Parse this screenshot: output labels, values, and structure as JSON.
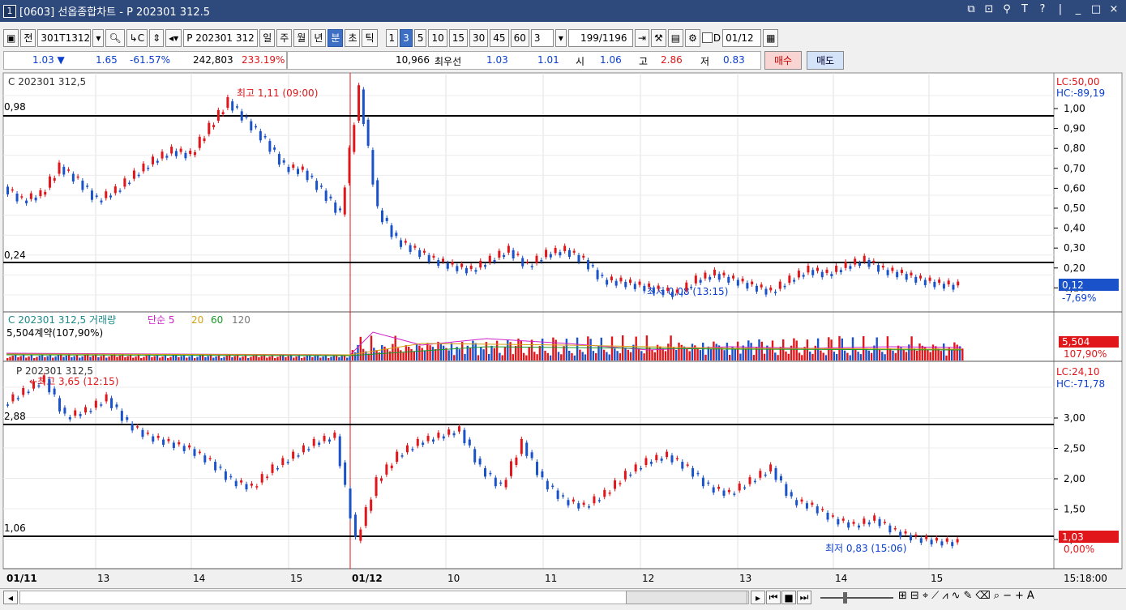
{
  "window": {
    "number": "1",
    "title": "[0603] 선옵종합차트 - P 202301 312.5",
    "controls": [
      "restore-icon",
      "detach-icon",
      "pin-icon",
      "T",
      "?",
      "|",
      "_",
      "□",
      "×"
    ]
  },
  "toolbar": {
    "all_label": "전",
    "code_value": "301T1312",
    "search_icon": "search-icon",
    "name_value": "P 202301 312",
    "periods": [
      "일",
      "주",
      "월",
      "년",
      "분",
      "초",
      "틱"
    ],
    "period_selected": "분",
    "intervals": [
      "1",
      "3",
      "5",
      "10",
      "15",
      "30",
      "45",
      "60"
    ],
    "interval_selected": "3",
    "count_select": "3",
    "count_value": "199",
    "count_total": "/1196",
    "checkbox_label": "D",
    "date_value": "01/12"
  },
  "quote": {
    "price": "1.03 ▼",
    "change": "1.65",
    "change_pct": "-61.57%",
    "volume": "242,803",
    "volume_pct": "233.19%",
    "bid_qty": "10,966",
    "bid_label": "최우선",
    "bid1": "1.03",
    "bid2": "1.01",
    "open_label": "시",
    "open": "1.06",
    "high_label": "고",
    "high": "2.86",
    "low_label": "저",
    "low": "0.83",
    "buy_label": "매수",
    "sell_label": "매도"
  },
  "panel1": {
    "title": "C 202301 312,5",
    "high_note": "최고 1,11 (09:00)",
    "low_note": "최저 0,08 (13:15)",
    "line_hi": "0,98",
    "line_lo": "0,24",
    "lc": "LC:50,00",
    "hc": "HC:-89,19",
    "yticks": [
      "1,00",
      "0,90",
      "0,80",
      "0,70",
      "0,60",
      "0,50",
      "0,40",
      "0,30",
      "0,20",
      "0,10"
    ],
    "cur": "0,12",
    "cur_pct": "-7,69%"
  },
  "panel2": {
    "title": "C 202301 312,5 거래량",
    "ma_label": "단순 5",
    "ma2": "20",
    "ma3": "60",
    "ma4": "120",
    "info": "5,504계약(107,90%)",
    "cur": "5,504",
    "cur_pct": "107,90%"
  },
  "panel3": {
    "title": "P 202301 312,5",
    "high_note": "←최고 3,65 (12:15)",
    "low_note": "최저 0,83 (15:06)",
    "line_hi": "2,88",
    "line_lo": "1,06",
    "lc": "LC:24,10",
    "hc": "HC:-71,78",
    "yticks": [
      "3,00",
      "2,50",
      "2,00",
      "1,50",
      "1,00"
    ],
    "cur": "1,03",
    "cur_pct": "0,00%"
  },
  "xaxis": {
    "labels": [
      "01/11",
      "13",
      "14",
      "15",
      "01/12",
      "10",
      "11",
      "12",
      "13",
      "14",
      "15"
    ],
    "time": "15:18:00"
  },
  "chart_data": [
    {
      "type": "candlestick",
      "title": "C 202301 312,5",
      "ylim": [
        0.05,
        1.12
      ],
      "series": [
        {
          "name": "C 202301 312,5",
          "values": [
            0.62,
            0.55,
            0.58,
            0.72,
            0.65,
            0.55,
            0.6,
            0.68,
            0.75,
            0.8,
            0.78,
            0.92,
            1.05,
            0.95,
            0.85,
            0.72,
            0.7,
            0.6,
            0.48,
            1.11,
            0.5,
            0.35,
            0.3,
            0.25,
            0.22,
            0.2,
            0.25,
            0.3,
            0.22,
            0.28,
            0.3,
            0.25,
            0.15,
            0.14,
            0.12,
            0.1,
            0.08,
            0.15,
            0.18,
            0.15,
            0.12,
            0.09,
            0.15,
            0.2,
            0.18,
            0.22,
            0.25,
            0.2,
            0.18,
            0.15,
            0.13,
            0.12
          ]
        }
      ]
    },
    {
      "type": "bar",
      "title": "C 202301 312,5 거래량",
      "series": [
        {
          "name": "거래량",
          "values": [
            5504
          ]
        }
      ]
    },
    {
      "type": "candlestick",
      "title": "P 202301 312,5",
      "ylim": [
        0.8,
        3.7
      ],
      "series": [
        {
          "name": "P 202301 312,5",
          "values": [
            3.2,
            3.4,
            3.6,
            3.0,
            3.1,
            3.3,
            2.9,
            2.7,
            2.6,
            2.5,
            2.3,
            2.0,
            1.9,
            2.2,
            2.4,
            2.6,
            2.7,
            1.06,
            2.0,
            2.4,
            2.6,
            2.7,
            2.8,
            2.2,
            1.9,
            2.6,
            2.0,
            1.7,
            1.6,
            1.8,
            2.1,
            2.3,
            2.4,
            2.2,
            1.9,
            1.8,
            2.0,
            2.2,
            1.7,
            1.6,
            1.4,
            1.3,
            1.4,
            1.2,
            1.1,
            1.05,
            1.03
          ]
        }
      ]
    }
  ]
}
